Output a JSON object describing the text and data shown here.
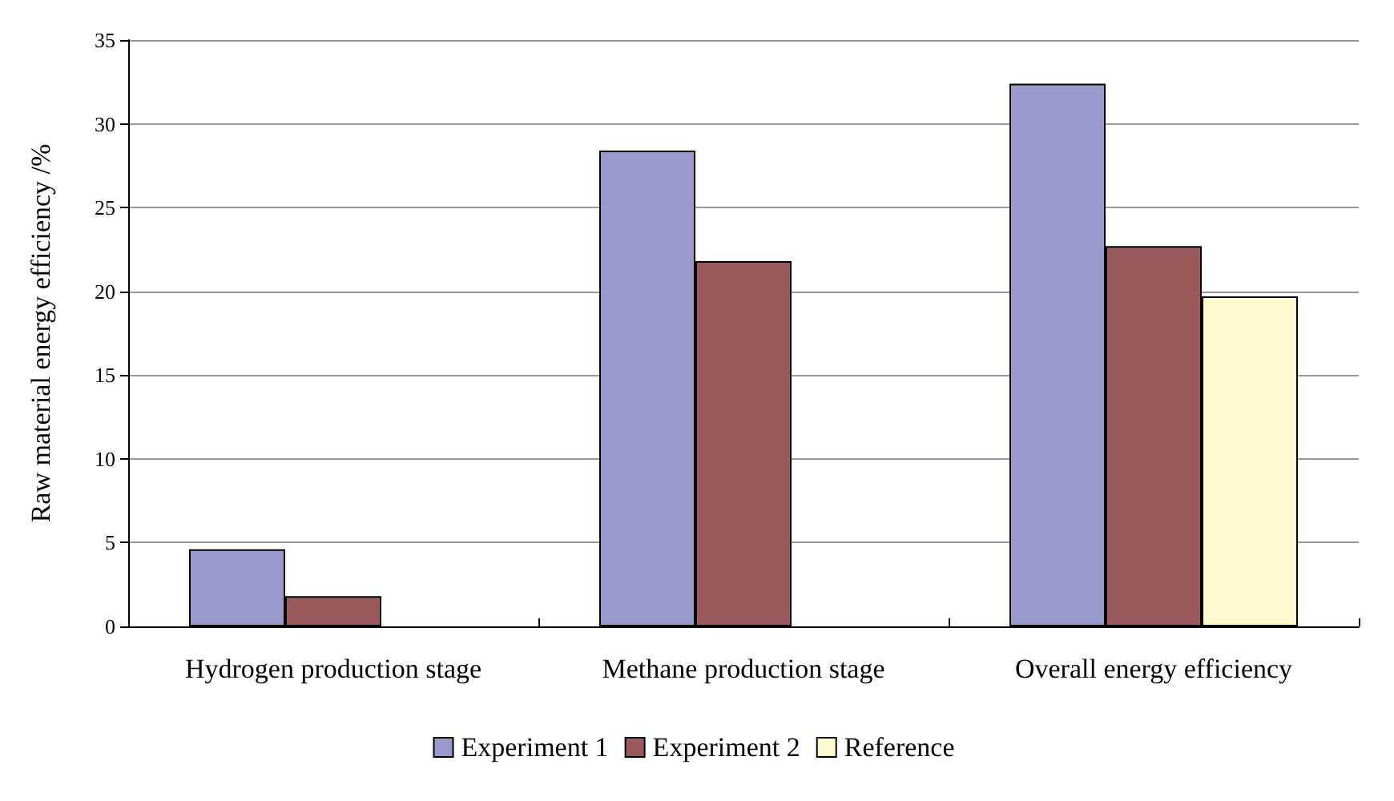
{
  "chart_data": {
    "type": "bar",
    "ylabel": "Raw material energy efficiency /%",
    "categories": [
      "Hydrogen production stage",
      "Methane production stage",
      "Overall energy efficiency"
    ],
    "series": [
      {
        "name": "Experiment 1",
        "color": "#9999cc",
        "values": [
          4.6,
          28.4,
          32.4
        ]
      },
      {
        "name": "Experiment 2",
        "color": "#9b5a5e",
        "values": [
          1.8,
          21.8,
          22.7
        ]
      },
      {
        "name": "Reference",
        "color": "#fffad0",
        "values": [
          null,
          null,
          19.7
        ]
      }
    ],
    "ylim": [
      0,
      35
    ],
    "yticks": [
      0,
      5,
      10,
      15,
      20,
      25,
      30,
      35
    ],
    "grid": "y",
    "legend": "bottom"
  }
}
